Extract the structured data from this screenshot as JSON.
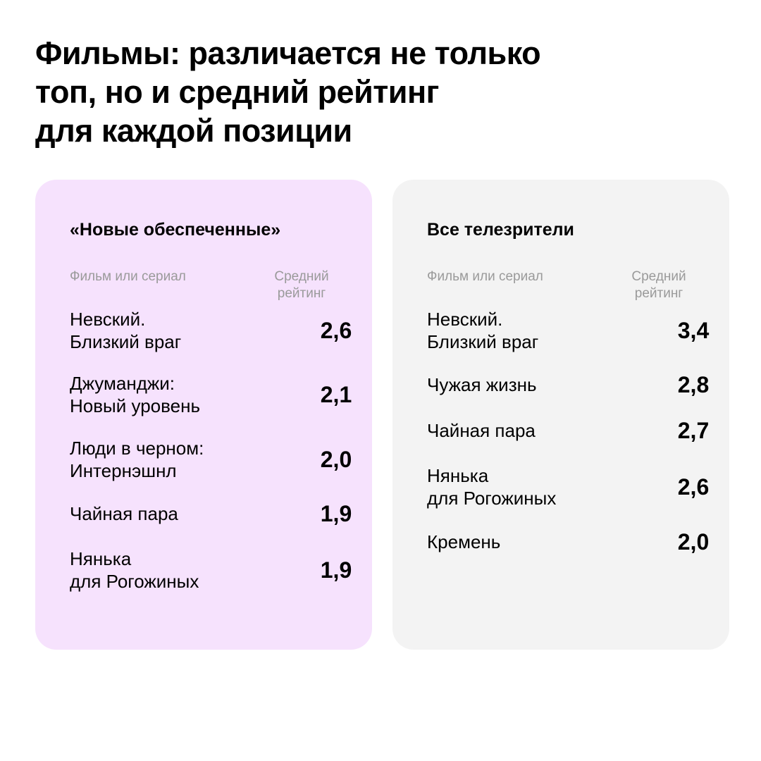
{
  "headline": "Фильмы: различается не только\nтоп, но и средний рейтинг\nдля каждой позиции",
  "column_headers": {
    "name": "Фильм или сериал",
    "rating": "Средний\nрейтинг"
  },
  "panels": [
    {
      "title": "«Новые обеспеченные»",
      "background": "#f6e2fd",
      "rows": [
        {
          "name": "Невский.\nБлизкий враг",
          "rating": "2,6"
        },
        {
          "name": "Джуманджи:\nНовый уровень",
          "rating": "2,1"
        },
        {
          "name": "Люди в черном:\nИнтернэшнл",
          "rating": "2,0"
        },
        {
          "name": "Чайная пара",
          "rating": "1,9"
        },
        {
          "name": "Нянька\nдля Рогожиных",
          "rating": "1,9"
        }
      ]
    },
    {
      "title": "Все телезрители",
      "background": "#f3f3f3",
      "rows": [
        {
          "name": "Невский.\nБлизкий враг",
          "rating": "3,4"
        },
        {
          "name": "Чужая жизнь",
          "rating": "2,8"
        },
        {
          "name": "Чайная пара",
          "rating": "2,7"
        },
        {
          "name": "Нянька\nдля Рогожиных",
          "rating": "2,6"
        },
        {
          "name": "Кремень",
          "rating": "2,0"
        }
      ]
    }
  ]
}
